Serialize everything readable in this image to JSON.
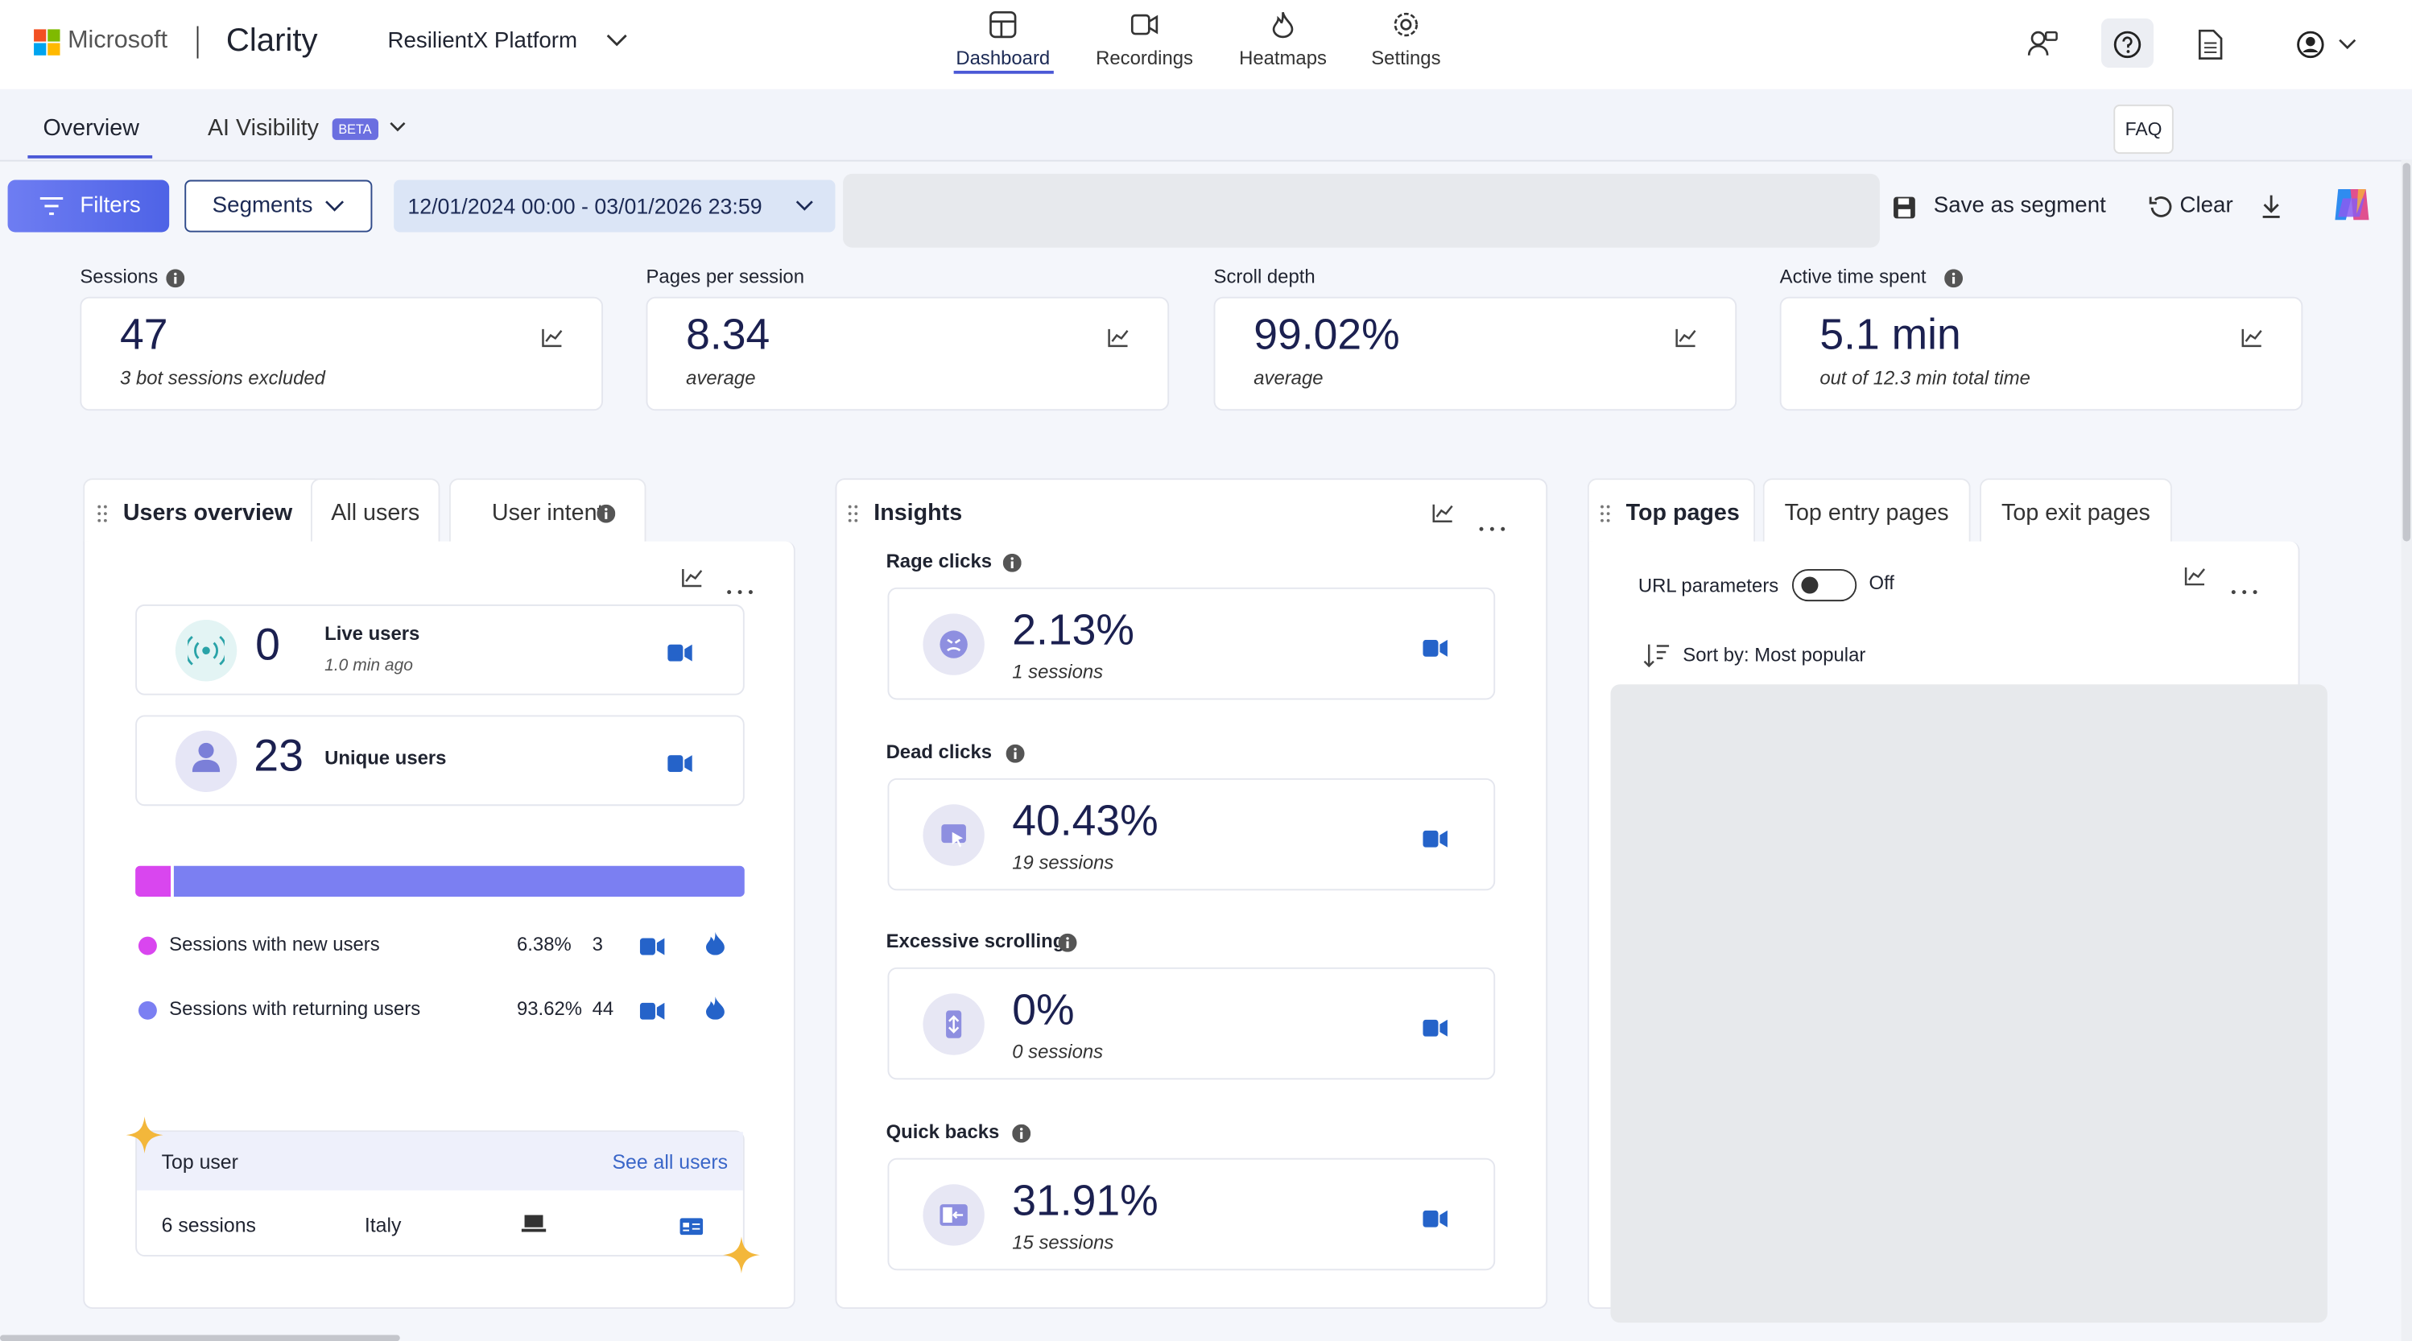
{
  "header": {
    "brand": "Microsoft",
    "product": "Clarity",
    "project": "ResilientX Platform",
    "nav": [
      "Dashboard",
      "Recordings",
      "Heatmaps",
      "Settings"
    ],
    "tooltip": "FAQ"
  },
  "subnav": {
    "tabs": [
      "Overview",
      "AI Visibility"
    ],
    "badge": "BETA"
  },
  "toolbar": {
    "filters": "Filters",
    "segments": "Segments",
    "date_range": "12/01/2024 00:00 - 03/01/2026 23:59",
    "save": "Save as segment",
    "clear": "Clear"
  },
  "metrics": [
    {
      "label": "Sessions",
      "value": "47",
      "note": "3 bot sessions excluded"
    },
    {
      "label": "Pages per session",
      "value": "8.34",
      "note": "average"
    },
    {
      "label": "Scroll depth",
      "value": "99.02%",
      "note": "average"
    },
    {
      "label": "Active time spent",
      "value": "5.1 min",
      "note": "out of 12.3 min total time"
    }
  ],
  "users": {
    "tabs": [
      "Users overview",
      "All users",
      "User intent"
    ],
    "live": {
      "value": "0",
      "label": "Live users",
      "note": "1.0 min ago"
    },
    "unique": {
      "value": "23",
      "label": "Unique users"
    },
    "legend": [
      {
        "label": "Sessions with new users",
        "percent": "6.38%",
        "count": "3"
      },
      {
        "label": "Sessions with returning users",
        "percent": "93.62%",
        "count": "44"
      }
    ],
    "top_user": {
      "title": "Top user",
      "link": "See all users",
      "sessions": "6 sessions",
      "country": "Italy"
    }
  },
  "insights": {
    "title": "Insights",
    "items": [
      {
        "label": "Rage clicks",
        "value": "2.13%",
        "note": "1 sessions"
      },
      {
        "label": "Dead clicks",
        "value": "40.43%",
        "note": "19 sessions"
      },
      {
        "label": "Excessive scrolling",
        "value": "0%",
        "note": "0 sessions"
      },
      {
        "label": "Quick backs",
        "value": "31.91%",
        "note": "15 sessions"
      }
    ]
  },
  "top_pages": {
    "tabs": [
      "Top pages",
      "Top entry pages",
      "Top exit pages"
    ],
    "toggle_label": "URL parameters",
    "toggle_state": "Off",
    "sort": "Sort by: Most popular"
  }
}
